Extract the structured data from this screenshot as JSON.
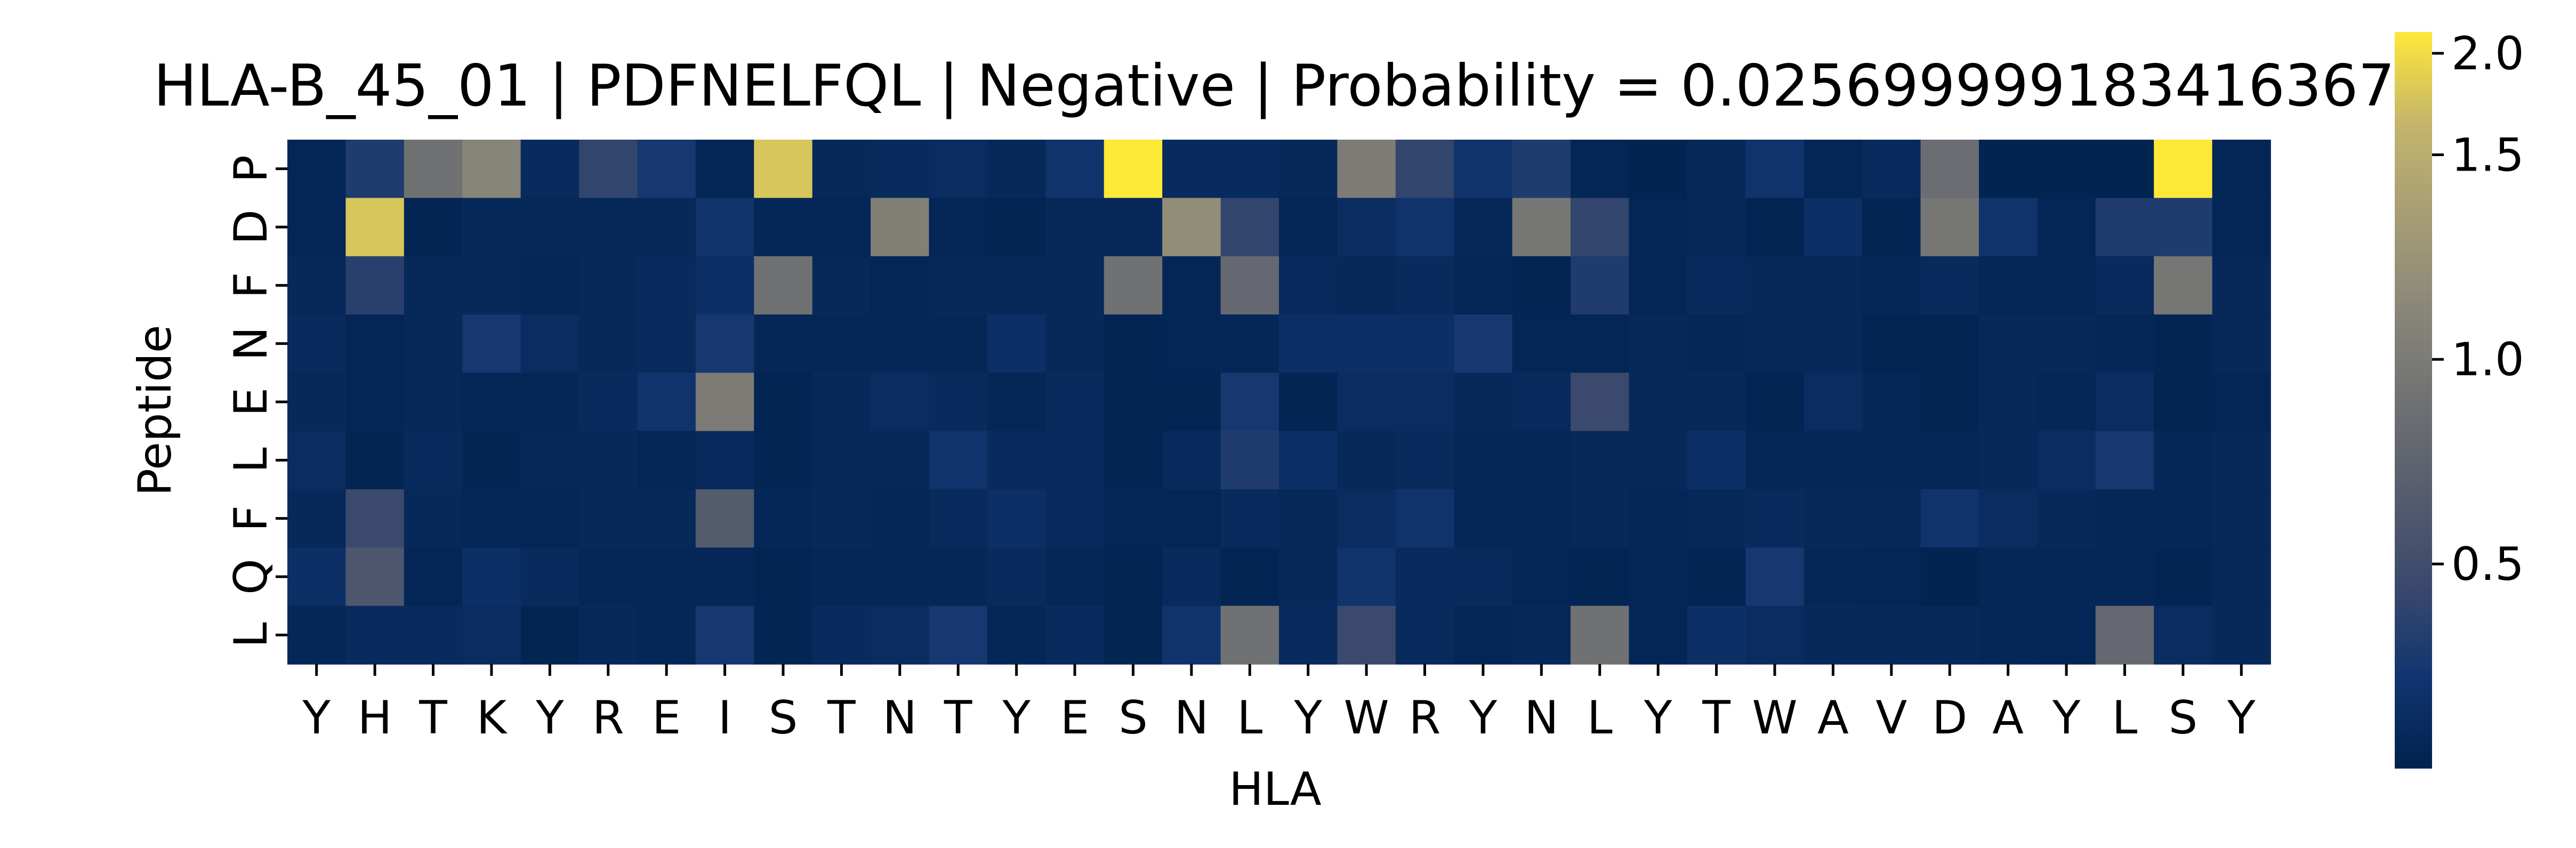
{
  "chart_data": {
    "type": "heatmap",
    "title": "HLA-B_45_01 | PDFNELFQL | Negative | Probability = 0.025699999183416367",
    "xlabel": "HLA",
    "ylabel": "Peptide",
    "x_categories": [
      "Y",
      "H",
      "T",
      "K",
      "Y",
      "R",
      "E",
      "I",
      "S",
      "T",
      "N",
      "T",
      "Y",
      "E",
      "S",
      "N",
      "L",
      "Y",
      "W",
      "R",
      "Y",
      "N",
      "L",
      "Y",
      "T",
      "W",
      "A",
      "V",
      "D",
      "A",
      "Y",
      "L",
      "S",
      "Y"
    ],
    "y_categories": [
      "P",
      "D",
      "F",
      "N",
      "E",
      "L",
      "F",
      "Q",
      "L"
    ],
    "colormap": "cividis",
    "vmin": 0.0,
    "vmax": 1.8,
    "colorbar_ticks": [
      {
        "value": 0.5,
        "label": "0.5"
      },
      {
        "value": 1.0,
        "label": "1.0"
      },
      {
        "value": 1.5,
        "label": "1.5"
      },
      {
        "value": 2.0,
        "label": "2.0"
      }
    ],
    "values": [
      [
        0.05,
        0.3,
        0.9,
        1.1,
        0.1,
        0.4,
        0.25,
        0.05,
        1.65,
        0.08,
        0.1,
        0.12,
        0.08,
        0.2,
        1.8,
        0.1,
        0.1,
        0.08,
        1.0,
        0.4,
        0.2,
        0.3,
        0.05,
        0.02,
        0.08,
        0.2,
        0.05,
        0.1,
        0.85,
        0.02,
        0.02,
        0.02,
        1.8,
        0.05
      ],
      [
        0.05,
        1.65,
        0.03,
        0.08,
        0.08,
        0.08,
        0.08,
        0.2,
        0.06,
        0.05,
        1.05,
        0.05,
        0.03,
        0.08,
        0.08,
        1.2,
        0.4,
        0.05,
        0.12,
        0.2,
        0.08,
        0.95,
        0.4,
        0.05,
        0.08,
        0.03,
        0.15,
        0.03,
        0.95,
        0.2,
        0.05,
        0.3,
        0.3,
        0.05
      ],
      [
        0.08,
        0.35,
        0.08,
        0.08,
        0.06,
        0.08,
        0.1,
        0.15,
        0.9,
        0.08,
        0.05,
        0.08,
        0.08,
        0.08,
        0.9,
        0.05,
        0.8,
        0.1,
        0.08,
        0.1,
        0.05,
        0.04,
        0.3,
        0.05,
        0.1,
        0.08,
        0.08,
        0.06,
        0.1,
        0.06,
        0.05,
        0.1,
        0.95,
        0.08
      ],
      [
        0.1,
        0.05,
        0.08,
        0.25,
        0.12,
        0.08,
        0.1,
        0.25,
        0.06,
        0.06,
        0.06,
        0.06,
        0.15,
        0.08,
        0.03,
        0.05,
        0.06,
        0.15,
        0.15,
        0.15,
        0.25,
        0.05,
        0.05,
        0.08,
        0.06,
        0.08,
        0.08,
        0.04,
        0.03,
        0.08,
        0.08,
        0.06,
        0.03,
        0.08
      ],
      [
        0.08,
        0.05,
        0.08,
        0.06,
        0.06,
        0.1,
        0.2,
        1.0,
        0.03,
        0.08,
        0.12,
        0.1,
        0.06,
        0.1,
        0.03,
        0.03,
        0.25,
        0.04,
        0.12,
        0.12,
        0.08,
        0.1,
        0.45,
        0.08,
        0.08,
        0.04,
        0.12,
        0.06,
        0.03,
        0.08,
        0.06,
        0.12,
        0.04,
        0.05
      ],
      [
        0.12,
        0.04,
        0.1,
        0.04,
        0.08,
        0.08,
        0.05,
        0.1,
        0.03,
        0.08,
        0.08,
        0.2,
        0.1,
        0.1,
        0.04,
        0.1,
        0.3,
        0.15,
        0.08,
        0.1,
        0.06,
        0.06,
        0.08,
        0.08,
        0.15,
        0.06,
        0.06,
        0.06,
        0.06,
        0.08,
        0.12,
        0.25,
        0.06,
        0.08
      ],
      [
        0.08,
        0.45,
        0.08,
        0.06,
        0.05,
        0.08,
        0.08,
        0.65,
        0.06,
        0.08,
        0.06,
        0.1,
        0.15,
        0.1,
        0.05,
        0.05,
        0.1,
        0.08,
        0.12,
        0.2,
        0.06,
        0.06,
        0.08,
        0.05,
        0.08,
        0.1,
        0.08,
        0.08,
        0.2,
        0.12,
        0.08,
        0.06,
        0.06,
        0.08
      ],
      [
        0.15,
        0.6,
        0.05,
        0.15,
        0.1,
        0.06,
        0.06,
        0.06,
        0.03,
        0.06,
        0.06,
        0.06,
        0.1,
        0.06,
        0.03,
        0.1,
        0.04,
        0.08,
        0.2,
        0.1,
        0.1,
        0.05,
        0.03,
        0.06,
        0.04,
        0.25,
        0.06,
        0.05,
        0.02,
        0.06,
        0.06,
        0.06,
        0.04,
        0.08
      ],
      [
        0.06,
        0.1,
        0.1,
        0.12,
        0.04,
        0.08,
        0.06,
        0.25,
        0.03,
        0.1,
        0.12,
        0.25,
        0.06,
        0.1,
        0.04,
        0.2,
        0.9,
        0.1,
        0.45,
        0.1,
        0.05,
        0.08,
        0.9,
        0.05,
        0.15,
        0.12,
        0.08,
        0.08,
        0.08,
        0.06,
        0.05,
        0.8,
        0.12,
        0.08
      ]
    ]
  }
}
